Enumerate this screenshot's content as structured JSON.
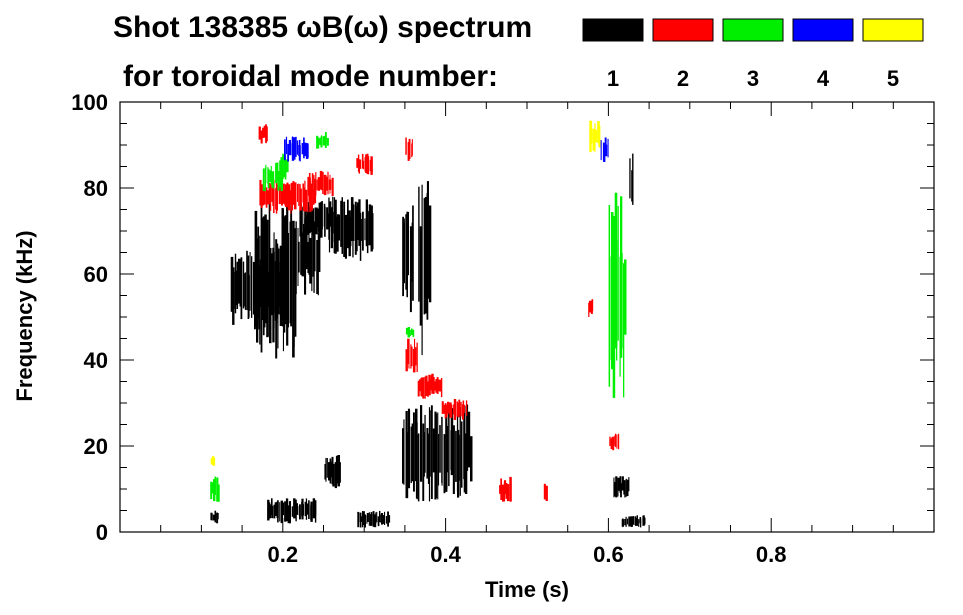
{
  "chart_data": {
    "type": "heatmap",
    "title": "Shot 138385 ωB(ω) spectrum",
    "subtitle": "for toroidal mode number:",
    "xlabel": "Time (s)",
    "ylabel": "Frequency (kHz)",
    "xlim": [
      0.0,
      1.0
    ],
    "ylim": [
      0,
      100
    ],
    "xticks": [
      {
        "value": 0.2,
        "label": "0.2"
      },
      {
        "value": 0.4,
        "label": "0.4"
      },
      {
        "value": 0.6,
        "label": "0.6"
      },
      {
        "value": 0.8,
        "label": "0.8"
      }
    ],
    "yticks": [
      {
        "value": 0,
        "label": "0"
      },
      {
        "value": 20,
        "label": "20"
      },
      {
        "value": 40,
        "label": "40"
      },
      {
        "value": 60,
        "label": "60"
      },
      {
        "value": 80,
        "label": "80"
      },
      {
        "value": 100,
        "label": "100"
      }
    ],
    "legend": [
      {
        "mode": "1",
        "color": "#000000"
      },
      {
        "mode": "2",
        "color": "#ff0000"
      },
      {
        "mode": "3",
        "color": "#00ee00"
      },
      {
        "mode": "4",
        "color": "#0000ff"
      },
      {
        "mode": "5",
        "color": "#ffff00"
      }
    ],
    "features": [
      {
        "mode": 1,
        "t0": 0.135,
        "t1": 0.205,
        "f0": 47,
        "f1": 66
      },
      {
        "mode": 1,
        "t0": 0.165,
        "t1": 0.215,
        "f0": 40,
        "f1": 78
      },
      {
        "mode": 1,
        "t0": 0.212,
        "t1": 0.245,
        "f0": 55,
        "f1": 74
      },
      {
        "mode": 1,
        "t0": 0.22,
        "t1": 0.26,
        "f0": 68,
        "f1": 77
      },
      {
        "mode": 1,
        "t0": 0.255,
        "t1": 0.31,
        "f0": 63,
        "f1": 78
      },
      {
        "mode": 1,
        "t0": 0.345,
        "t1": 0.36,
        "f0": 50,
        "f1": 80
      },
      {
        "mode": 1,
        "t0": 0.365,
        "t1": 0.38,
        "f0": 40,
        "f1": 82
      },
      {
        "mode": 1,
        "t0": 0.345,
        "t1": 0.43,
        "f0": 7,
        "f1": 30
      },
      {
        "mode": 1,
        "t0": 0.25,
        "t1": 0.27,
        "f0": 10,
        "f1": 18
      },
      {
        "mode": 1,
        "t0": 0.11,
        "t1": 0.12,
        "f0": 2,
        "f1": 5
      },
      {
        "mode": 1,
        "t0": 0.18,
        "t1": 0.24,
        "f0": 2,
        "f1": 8
      },
      {
        "mode": 1,
        "t0": 0.29,
        "t1": 0.33,
        "f0": 1,
        "f1": 5
      },
      {
        "mode": 1,
        "t0": 0.605,
        "t1": 0.625,
        "f0": 8,
        "f1": 13
      },
      {
        "mode": 1,
        "t0": 0.615,
        "t1": 0.645,
        "f0": 1,
        "f1": 4
      },
      {
        "mode": 1,
        "t0": 0.625,
        "t1": 0.63,
        "f0": 72,
        "f1": 88
      },
      {
        "mode": 2,
        "t0": 0.17,
        "t1": 0.24,
        "f0": 74,
        "f1": 82
      },
      {
        "mode": 2,
        "t0": 0.23,
        "t1": 0.26,
        "f0": 78,
        "f1": 84
      },
      {
        "mode": 2,
        "t0": 0.29,
        "t1": 0.31,
        "f0": 83,
        "f1": 88
      },
      {
        "mode": 2,
        "t0": 0.17,
        "t1": 0.18,
        "f0": 90,
        "f1": 95
      },
      {
        "mode": 2,
        "t0": 0.35,
        "t1": 0.36,
        "f0": 86,
        "f1": 92
      },
      {
        "mode": 2,
        "t0": 0.35,
        "t1": 0.365,
        "f0": 37,
        "f1": 45
      },
      {
        "mode": 2,
        "t0": 0.365,
        "t1": 0.395,
        "f0": 31,
        "f1": 37
      },
      {
        "mode": 2,
        "t0": 0.395,
        "t1": 0.425,
        "f0": 26,
        "f1": 31
      },
      {
        "mode": 2,
        "t0": 0.465,
        "t1": 0.48,
        "f0": 7,
        "f1": 13
      },
      {
        "mode": 2,
        "t0": 0.52,
        "t1": 0.523,
        "f0": 7,
        "f1": 12
      },
      {
        "mode": 2,
        "t0": 0.574,
        "t1": 0.58,
        "f0": 50,
        "f1": 55
      },
      {
        "mode": 2,
        "t0": 0.6,
        "t1": 0.612,
        "f0": 19,
        "f1": 23
      },
      {
        "mode": 3,
        "t0": 0.175,
        "t1": 0.2,
        "f0": 79,
        "f1": 86
      },
      {
        "mode": 3,
        "t0": 0.195,
        "t1": 0.205,
        "f0": 82,
        "f1": 88
      },
      {
        "mode": 3,
        "t0": 0.24,
        "t1": 0.255,
        "f0": 89,
        "f1": 93
      },
      {
        "mode": 3,
        "t0": 0.6,
        "t1": 0.62,
        "f0": 30,
        "f1": 80
      },
      {
        "mode": 3,
        "t0": 0.11,
        "t1": 0.12,
        "f0": 7,
        "f1": 13
      },
      {
        "mode": 3,
        "t0": 0.35,
        "t1": 0.36,
        "f0": 45,
        "f1": 48
      },
      {
        "mode": 4,
        "t0": 0.2,
        "t1": 0.23,
        "f0": 86,
        "f1": 92
      },
      {
        "mode": 4,
        "t0": 0.59,
        "t1": 0.6,
        "f0": 85,
        "f1": 92
      },
      {
        "mode": 5,
        "t0": 0.575,
        "t1": 0.59,
        "f0": 88,
        "f1": 96
      },
      {
        "mode": 5,
        "t0": 0.11,
        "t1": 0.115,
        "f0": 15,
        "f1": 18
      }
    ]
  }
}
